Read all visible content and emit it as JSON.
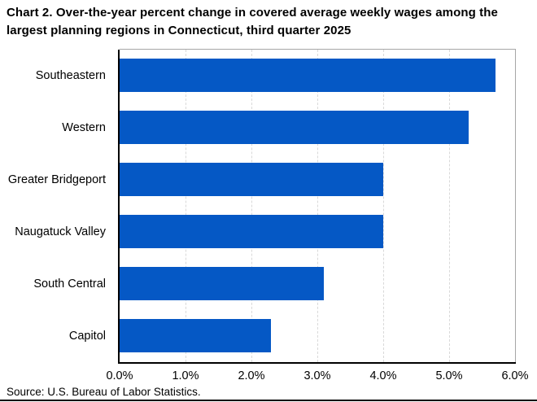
{
  "title": "Chart 2. Over-the-year percent change in covered average weekly wages among the largest planning regions in Connecticut, third quarter 2025",
  "source": "Source: U.S. Bureau of Labor Statistics.",
  "colors": {
    "bar": "#0558C5",
    "gridline": "#d9d9d9",
    "plot_border": "#a6a6a6",
    "axis": "#000000"
  },
  "chart_data": {
    "type": "bar",
    "orientation": "horizontal",
    "title": "Chart 2. Over-the-year percent change in covered average weekly wages among the largest planning regions in Connecticut, third quarter 2025",
    "categories": [
      "Southeastern",
      "Western",
      "Greater Bridgeport",
      "Naugatuck Valley",
      "South Central",
      "Capitol"
    ],
    "values": [
      5.7,
      5.3,
      4.0,
      4.0,
      3.1,
      2.3
    ],
    "unit": "%",
    "xlabel": "",
    "ylabel": "",
    "xlim": [
      0,
      6
    ],
    "x_ticks": [
      "0.0%",
      "1.0%",
      "2.0%",
      "3.0%",
      "4.0%",
      "5.0%",
      "6.0%"
    ],
    "grid": "vertical-dashed",
    "legend": "none"
  }
}
